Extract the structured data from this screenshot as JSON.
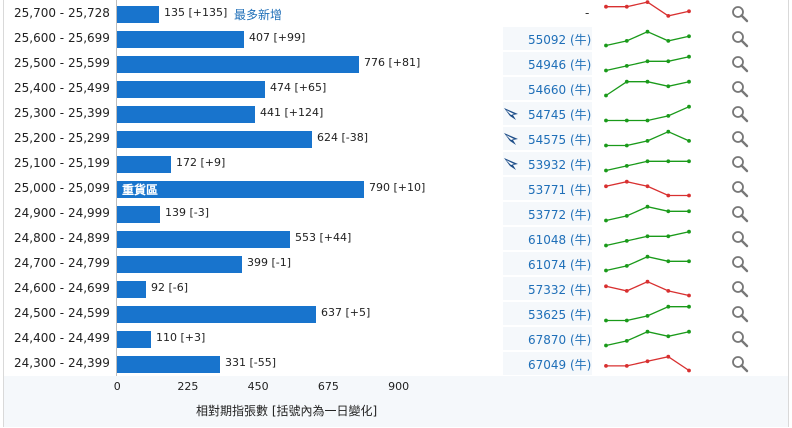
{
  "chart_data": {
    "type": "bar",
    "orientation": "horizontal",
    "xlabel": "相對期指張數 [括號內為一日變化]",
    "xlim": [
      0,
      900
    ],
    "xticks": [
      "0",
      "225",
      "450",
      "675",
      "900"
    ],
    "colors": {
      "bar": "#1874cd",
      "spark_up": "#1a9a1a",
      "spark_down": "#d83030",
      "link": "#1f6fb8"
    },
    "rows": [
      {
        "range": "25,700 - 25,728",
        "value": 135,
        "change": "[+135]",
        "label": "135 [+135]",
        "note": "最多新增",
        "bear": "-",
        "bear_icon": false,
        "trend": "down",
        "spark": [
          4,
          4,
          5,
          2,
          3
        ]
      },
      {
        "range": "25,600 - 25,699",
        "value": 407,
        "change": "[+99]",
        "label": "407 [+99]",
        "bear": "55092 (牛)",
        "bear_icon": false,
        "trend": "up",
        "spark": [
          1,
          2,
          4,
          2,
          3
        ]
      },
      {
        "range": "25,500 - 25,599",
        "value": 776,
        "change": "[+81]",
        "label": "776 [+81]",
        "bear": "54946 (牛)",
        "bear_icon": false,
        "trend": "up",
        "spark": [
          1,
          2,
          3,
          3,
          4
        ]
      },
      {
        "range": "25,400 - 25,499",
        "value": 474,
        "change": "[+65]",
        "label": "474 [+65]",
        "bear": "54660 (牛)",
        "bear_icon": false,
        "trend": "up",
        "spark": [
          1,
          4,
          4,
          3,
          4
        ]
      },
      {
        "range": "25,300 - 25,399",
        "value": 441,
        "change": "[+124]",
        "label": "441 [+124]",
        "bear": "54745 (牛)",
        "bear_icon": true,
        "trend": "up",
        "spark": [
          1,
          1,
          1,
          2,
          4
        ]
      },
      {
        "range": "25,200 - 25,299",
        "value": 624,
        "change": "[-38]",
        "label": "624 [-38]",
        "bear": "54575 (牛)",
        "bear_icon": true,
        "trend": "up",
        "spark": [
          1,
          1,
          2,
          4,
          2
        ]
      },
      {
        "range": "25,100 - 25,199",
        "value": 172,
        "change": "[+9]",
        "label": "172 [+9]",
        "bear": "53932 (牛)",
        "bear_icon": true,
        "trend": "up",
        "spark": [
          1,
          2,
          3,
          3,
          3
        ]
      },
      {
        "range": "25,000 - 25,099",
        "value": 790,
        "change": "[+10]",
        "label": "790 [+10]",
        "heavy": "重貨區",
        "bear": "53771 (牛)",
        "bear_icon": false,
        "trend": "down",
        "spark": [
          3,
          4,
          3,
          1,
          1
        ]
      },
      {
        "range": "24,900 - 24,999",
        "value": 139,
        "change": "[-3]",
        "label": "139 [-3]",
        "bear": "53772 (牛)",
        "bear_icon": false,
        "trend": "up",
        "spark": [
          1,
          2,
          4,
          3,
          3
        ]
      },
      {
        "range": "24,800 - 24,899",
        "value": 553,
        "change": "[+44]",
        "label": "553 [+44]",
        "bear": "61048 (牛)",
        "bear_icon": false,
        "trend": "up",
        "spark": [
          1,
          2,
          3,
          3,
          4
        ]
      },
      {
        "range": "24,700 - 24,799",
        "value": 399,
        "change": "[-1]",
        "label": "399 [-1]",
        "bear": "61074 (牛)",
        "bear_icon": false,
        "trend": "up",
        "spark": [
          1,
          2,
          4,
          3,
          3
        ]
      },
      {
        "range": "24,600 - 24,699",
        "value": 92,
        "change": "[-6]",
        "label": "92 [-6]",
        "bear": "57332 (牛)",
        "bear_icon": false,
        "trend": "down",
        "spark": [
          3,
          2,
          4,
          2,
          1
        ]
      },
      {
        "range": "24,500 - 24,599",
        "value": 637,
        "change": "[+5]",
        "label": "637 [+5]",
        "bear": "53625 (牛)",
        "bear_icon": false,
        "trend": "up",
        "spark": [
          1,
          1,
          2,
          4,
          4
        ]
      },
      {
        "range": "24,400 - 24,499",
        "value": 110,
        "change": "[+3]",
        "label": "110 [+3]",
        "bear": "67870 (牛)",
        "bear_icon": false,
        "trend": "up",
        "spark": [
          1,
          2,
          4,
          3,
          4
        ]
      },
      {
        "range": "24,300 - 24,399",
        "value": 331,
        "change": "[-55]",
        "label": "331 [-55]",
        "bear": "67049 (牛)",
        "bear_icon": false,
        "trend": "down",
        "spark": [
          2,
          2,
          3,
          4,
          1
        ]
      }
    ]
  }
}
